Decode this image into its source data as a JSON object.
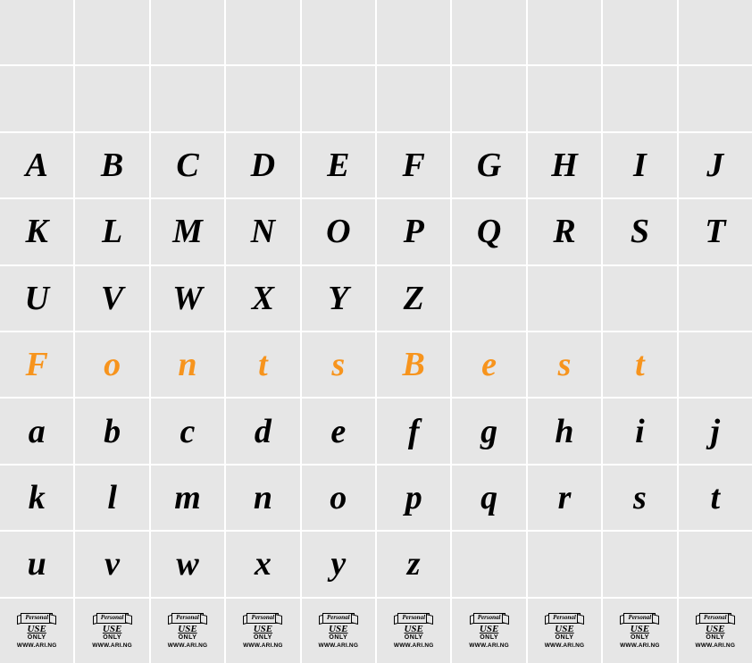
{
  "grid": {
    "columns": 10,
    "rows": 10,
    "cell_bg": "#e6e6e6",
    "gap_color": "#ffffff",
    "text_color": "#000000",
    "accent_color": "#f7941d",
    "font_family": "cursive",
    "font_size_pt": 28
  },
  "rows": [
    [
      "",
      "",
      "",
      "",
      "",
      "",
      "",
      "",
      "",
      ""
    ],
    [
      "",
      "",
      "",
      "",
      "",
      "",
      "",
      "",
      "",
      ""
    ],
    [
      "A",
      "B",
      "C",
      "D",
      "E",
      "F",
      "G",
      "H",
      "I",
      "J"
    ],
    [
      "K",
      "L",
      "M",
      "N",
      "O",
      "P",
      "Q",
      "R",
      "S",
      "T"
    ],
    [
      "U",
      "V",
      "W",
      "X",
      "Y",
      "Z",
      "",
      "",
      "",
      ""
    ],
    [
      "F",
      "o",
      "n",
      "t",
      "s",
      "B",
      "e",
      "s",
      "t",
      ""
    ],
    [
      "a",
      "b",
      "c",
      "d",
      "e",
      "f",
      "g",
      "h",
      "i",
      "j"
    ],
    [
      "k",
      "l",
      "m",
      "n",
      "o",
      "p",
      "q",
      "r",
      "s",
      "t"
    ],
    [
      "u",
      "v",
      "w",
      "x",
      "y",
      "z",
      "",
      "",
      "",
      ""
    ],
    [
      "@badge",
      "@badge",
      "@badge",
      "@badge",
      "@badge",
      "@badge",
      "@badge",
      "@badge",
      "@badge",
      "@badge"
    ]
  ],
  "accent_row_index": 5,
  "badge": {
    "banner_text": "Personal",
    "line2": "USE",
    "line3": "ONLY",
    "url": "WWW.ARI.NG"
  }
}
